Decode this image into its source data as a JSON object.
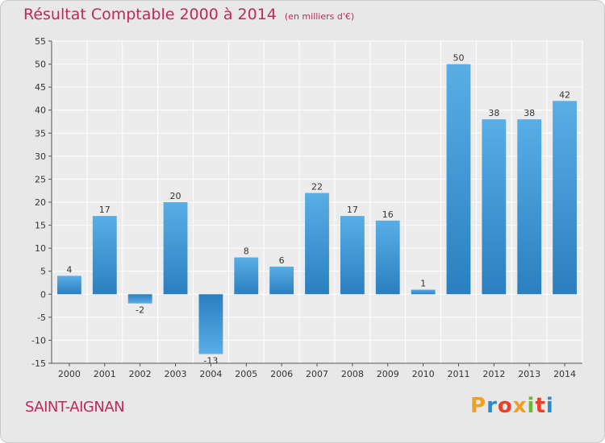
{
  "header": {
    "title": "Résultat Comptable 2000 à 2014",
    "subtitle": "(en milliers d'€)"
  },
  "footer": {
    "commune": "SAINT-AIGNAN",
    "logo_text": "Proxiti",
    "logo_colors": [
      "#f0a020",
      "#2a8bd0",
      "#e8402a",
      "#f0a020",
      "#6ab82e",
      "#e8402a",
      "#2a8bd0"
    ]
  },
  "chart_data": {
    "type": "bar",
    "categories": [
      "2000",
      "2001",
      "2002",
      "2003",
      "2004",
      "2005",
      "2006",
      "2007",
      "2008",
      "2009",
      "2010",
      "2011",
      "2012",
      "2013",
      "2014"
    ],
    "values": [
      4,
      17,
      -2,
      20,
      -13,
      8,
      6,
      22,
      17,
      16,
      1,
      50,
      38,
      38,
      42
    ],
    "title": "Résultat Comptable 2000 à 2014",
    "subtitle": "(en milliers d'€)",
    "xlabel": "",
    "ylabel": "",
    "ylim": [
      -15,
      55
    ],
    "yticks": [
      -15,
      -10,
      -5,
      0,
      5,
      10,
      15,
      20,
      25,
      30,
      35,
      40,
      45,
      50,
      55
    ],
    "grid": true,
    "bar_color": "#3a97d8"
  }
}
